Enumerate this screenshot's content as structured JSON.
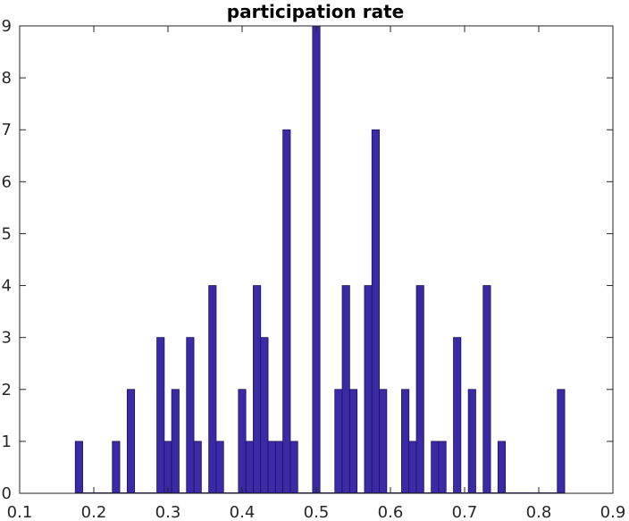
{
  "chart_data": {
    "type": "bar",
    "title": "participation rate",
    "xlabel": "",
    "ylabel": "",
    "xlim": [
      0.1,
      0.9
    ],
    "ylim": [
      0,
      9
    ],
    "xticks": [
      0.1,
      0.2,
      0.3,
      0.4,
      0.5,
      0.6,
      0.7,
      0.8,
      0.9
    ],
    "xtick_labels": [
      "0.1",
      "0.2",
      "0.3",
      "0.4",
      "0.5",
      "0.6",
      "0.7",
      "0.8",
      "0.9"
    ],
    "yticks": [
      0,
      1,
      2,
      3,
      4,
      5,
      6,
      7,
      8,
      9
    ],
    "ytick_labels": [
      "0",
      "1",
      "2",
      "3",
      "4",
      "5",
      "6",
      "7",
      "8",
      "9"
    ],
    "grid": false,
    "bin_width": 0.01,
    "bins": [
      {
        "x": 0.18,
        "count": 1
      },
      {
        "x": 0.23,
        "count": 1
      },
      {
        "x": 0.25,
        "count": 2
      },
      {
        "x": 0.29,
        "count": 3
      },
      {
        "x": 0.3,
        "count": 1
      },
      {
        "x": 0.31,
        "count": 2
      },
      {
        "x": 0.33,
        "count": 3
      },
      {
        "x": 0.34,
        "count": 1
      },
      {
        "x": 0.36,
        "count": 4
      },
      {
        "x": 0.37,
        "count": 1
      },
      {
        "x": 0.4,
        "count": 2
      },
      {
        "x": 0.41,
        "count": 1
      },
      {
        "x": 0.42,
        "count": 4
      },
      {
        "x": 0.43,
        "count": 3
      },
      {
        "x": 0.44,
        "count": 1
      },
      {
        "x": 0.45,
        "count": 1
      },
      {
        "x": 0.46,
        "count": 7
      },
      {
        "x": 0.47,
        "count": 1
      },
      {
        "x": 0.5,
        "count": 9
      },
      {
        "x": 0.53,
        "count": 2
      },
      {
        "x": 0.54,
        "count": 4
      },
      {
        "x": 0.55,
        "count": 2
      },
      {
        "x": 0.57,
        "count": 4
      },
      {
        "x": 0.58,
        "count": 7
      },
      {
        "x": 0.59,
        "count": 2
      },
      {
        "x": 0.62,
        "count": 2
      },
      {
        "x": 0.63,
        "count": 1
      },
      {
        "x": 0.64,
        "count": 4
      },
      {
        "x": 0.66,
        "count": 1
      },
      {
        "x": 0.67,
        "count": 1
      },
      {
        "x": 0.69,
        "count": 3
      },
      {
        "x": 0.71,
        "count": 2
      },
      {
        "x": 0.73,
        "count": 4
      },
      {
        "x": 0.75,
        "count": 1
      },
      {
        "x": 0.83,
        "count": 2
      }
    ],
    "colors": {
      "bar_fill": "#3b2aa6",
      "bar_edge": "#1a1060",
      "axis": "#262626",
      "background": "#ffffff"
    }
  }
}
